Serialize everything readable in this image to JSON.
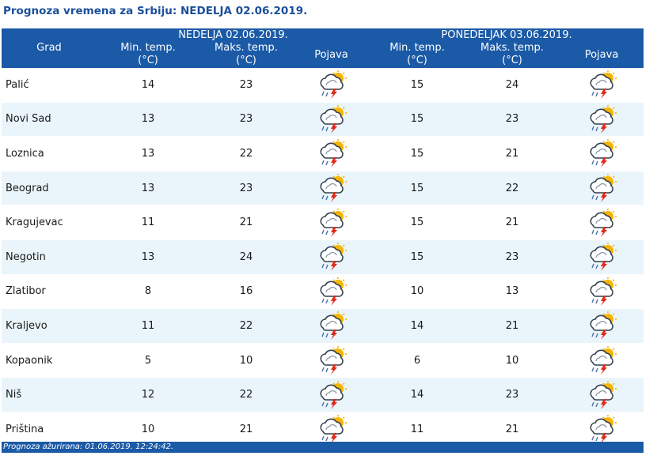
{
  "page_title": "Prognoza vremena za Srbiju: NEDELJA  02.06.2019.",
  "header": {
    "grad": "Grad",
    "day1": "NEDELJA  02.06.2019.",
    "day2": "PONEDELJAK  03.06.2019.",
    "min_temp": "Min. temp.",
    "max_temp": "Maks. temp.",
    "unit": "(°C)",
    "pojava": "Pojava"
  },
  "icon_name": "thunderstorm-sun-icon",
  "rows": [
    {
      "city": "Palić",
      "d1_min": "14",
      "d1_max": "23",
      "d2_min": "15",
      "d2_max": "24"
    },
    {
      "city": "Novi Sad",
      "d1_min": "13",
      "d1_max": "23",
      "d2_min": "15",
      "d2_max": "23"
    },
    {
      "city": "Loznica",
      "d1_min": "13",
      "d1_max": "22",
      "d2_min": "15",
      "d2_max": "21"
    },
    {
      "city": "Beograd",
      "d1_min": "13",
      "d1_max": "23",
      "d2_min": "15",
      "d2_max": "22"
    },
    {
      "city": "Kragujevac",
      "d1_min": "11",
      "d1_max": "21",
      "d2_min": "15",
      "d2_max": "21"
    },
    {
      "city": "Negotin",
      "d1_min": "13",
      "d1_max": "24",
      "d2_min": "15",
      "d2_max": "23"
    },
    {
      "city": "Zlatibor",
      "d1_min": "8",
      "d1_max": "16",
      "d2_min": "10",
      "d2_max": "13"
    },
    {
      "city": "Kraljevo",
      "d1_min": "11",
      "d1_max": "22",
      "d2_min": "14",
      "d2_max": "21"
    },
    {
      "city": "Kopaonik",
      "d1_min": "5",
      "d1_max": "10",
      "d2_min": "6",
      "d2_max": "10"
    },
    {
      "city": "Niš",
      "d1_min": "12",
      "d1_max": "22",
      "d2_min": "14",
      "d2_max": "23"
    },
    {
      "city": "Priština",
      "d1_min": "10",
      "d1_max": "21",
      "d2_min": "11",
      "d2_max": "21"
    }
  ],
  "footer": "Prognoza ažurirana:  01.06.2019. 12:24:42.",
  "colors": {
    "header_bg": "#1b5aa6",
    "title": "#1c4f99",
    "row_alt": "#eaf5fb"
  }
}
